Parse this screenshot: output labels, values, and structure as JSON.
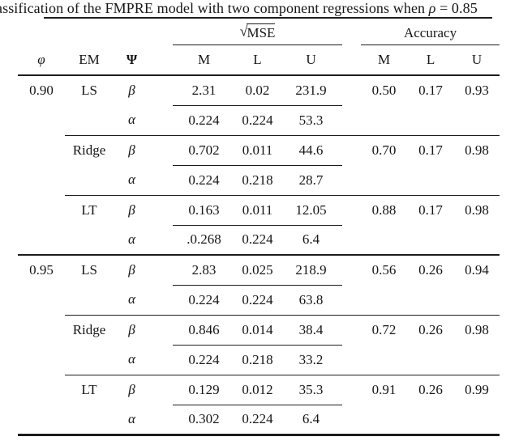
{
  "caption": {
    "prefix": "assification of the FMPRE model with two component regressions when ",
    "rho": "ρ",
    "suffix": " = 0.85"
  },
  "table": {
    "group_headers": {
      "mse_radical": "√",
      "mse": "MSE",
      "accuracy": "Accuracy"
    },
    "columns": {
      "phi": "φ",
      "em": "EM",
      "psi": "Ψ",
      "mse_m": "M",
      "mse_l": "L",
      "mse_u": "U",
      "acc_m": "M",
      "acc_l": "L",
      "acc_u": "U"
    },
    "rows": [
      {
        "phi": "0.90",
        "em": "LS",
        "psi": "β",
        "mse_m": "2.31",
        "mse_l": "0.02",
        "mse_u": "231.9",
        "acc_m": "0.50",
        "acc_l": "0.17",
        "acc_u": "0.93"
      },
      {
        "phi": "",
        "em": "",
        "psi": "α",
        "mse_m": "0.224",
        "mse_l": "0.224",
        "mse_u": "53.3",
        "acc_m": "",
        "acc_l": "",
        "acc_u": ""
      },
      {
        "phi": "",
        "em": "Ridge",
        "psi": "β",
        "mse_m": "0.702",
        "mse_l": "0.011",
        "mse_u": "44.6",
        "acc_m": "0.70",
        "acc_l": "0.17",
        "acc_u": "0.98"
      },
      {
        "phi": "",
        "em": "",
        "psi": "α",
        "mse_m": "0.224",
        "mse_l": "0.218",
        "mse_u": "28.7",
        "acc_m": "",
        "acc_l": "",
        "acc_u": ""
      },
      {
        "phi": "",
        "em": "LT",
        "psi": "β",
        "mse_m": "0.163",
        "mse_l": "0.011",
        "mse_u": "12.05",
        "acc_m": "0.88",
        "acc_l": "0.17",
        "acc_u": "0.98"
      },
      {
        "phi": "",
        "em": "",
        "psi": "α",
        "mse_m": ".0.268",
        "mse_l": "0.224",
        "mse_u": "6.4",
        "acc_m": "",
        "acc_l": "",
        "acc_u": ""
      },
      {
        "phi": "0.95",
        "em": "LS",
        "psi": "β",
        "mse_m": "2.83",
        "mse_l": "0.025",
        "mse_u": "218.9",
        "acc_m": "0.56",
        "acc_l": "0.26",
        "acc_u": "0.94"
      },
      {
        "phi": "",
        "em": "",
        "psi": "α",
        "mse_m": "0.224",
        "mse_l": "0.224",
        "mse_u": "63.8",
        "acc_m": "",
        "acc_l": "",
        "acc_u": ""
      },
      {
        "phi": "",
        "em": "Ridge",
        "psi": "β",
        "mse_m": "0.846",
        "mse_l": "0.014",
        "mse_u": "38.4",
        "acc_m": "0.72",
        "acc_l": "0.26",
        "acc_u": "0.98"
      },
      {
        "phi": "",
        "em": "",
        "psi": "α",
        "mse_m": "0.224",
        "mse_l": "0.218",
        "mse_u": "33.2",
        "acc_m": "",
        "acc_l": "",
        "acc_u": ""
      },
      {
        "phi": "",
        "em": "LT",
        "psi": "β",
        "mse_m": "0.129",
        "mse_l": "0.012",
        "mse_u": "35.3",
        "acc_m": "0.91",
        "acc_l": "0.26",
        "acc_u": "0.99"
      },
      {
        "phi": "",
        "em": "",
        "psi": "α",
        "mse_m": "0.302",
        "mse_l": "0.224",
        "mse_u": "6.4",
        "acc_m": "",
        "acc_l": "",
        "acc_u": ""
      }
    ]
  }
}
